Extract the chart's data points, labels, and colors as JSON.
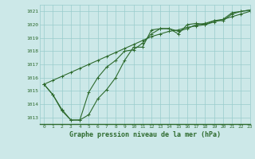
{
  "line1_x": [
    0,
    1,
    2,
    3,
    4,
    5,
    6,
    7,
    8,
    9,
    10,
    11,
    12,
    13,
    14,
    15,
    16,
    17,
    18,
    19,
    20,
    21,
    22,
    23
  ],
  "line1_y": [
    1015.5,
    1015.8,
    1016.1,
    1016.4,
    1016.7,
    1017.0,
    1017.3,
    1017.6,
    1017.9,
    1018.2,
    1018.5,
    1018.8,
    1019.1,
    1019.3,
    1019.5,
    1019.6,
    1019.8,
    1019.9,
    1020.0,
    1020.2,
    1020.4,
    1020.6,
    1020.8,
    1021.0
  ],
  "line2_x": [
    0,
    1,
    2,
    3,
    4,
    5,
    6,
    7,
    8,
    9,
    10,
    11,
    12,
    13,
    14,
    15,
    16,
    17,
    18,
    19,
    20,
    21,
    22,
    23
  ],
  "line2_y": [
    1015.5,
    1014.7,
    1013.6,
    1012.8,
    1012.8,
    1013.2,
    1014.4,
    1015.1,
    1016.0,
    1017.3,
    1018.3,
    1018.3,
    1019.6,
    1019.7,
    1019.7,
    1019.3,
    1020.0,
    1020.1,
    1020.0,
    1020.3,
    1020.3,
    1020.8,
    1021.0,
    1021.1
  ],
  "line3_x": [
    0,
    1,
    2,
    3,
    4,
    5,
    6,
    7,
    8,
    9,
    10,
    11,
    12,
    13,
    14,
    15,
    16,
    17,
    18,
    19,
    20,
    21,
    22,
    23
  ],
  "line3_y": [
    1015.5,
    1014.7,
    1013.5,
    1012.8,
    1012.8,
    1014.9,
    1016.0,
    1016.8,
    1017.3,
    1018.0,
    1018.1,
    1018.6,
    1019.3,
    1019.7,
    1019.7,
    1019.5,
    1019.7,
    1020.0,
    1020.1,
    1020.3,
    1020.4,
    1020.9,
    1021.0,
    1021.1
  ],
  "bg_color": "#cce8e8",
  "grid_color": "#99cccc",
  "line_color": "#2d6a2d",
  "xlabel": "Graphe pression niveau de la mer (hPa)",
  "ylim": [
    1012.5,
    1021.5
  ],
  "xlim": [
    -0.5,
    23
  ],
  "yticks": [
    1013,
    1014,
    1015,
    1016,
    1017,
    1018,
    1019,
    1020,
    1021
  ],
  "xticks": [
    0,
    1,
    2,
    3,
    4,
    5,
    6,
    7,
    8,
    9,
    10,
    11,
    12,
    13,
    14,
    15,
    16,
    17,
    18,
    19,
    20,
    21,
    22,
    23
  ]
}
